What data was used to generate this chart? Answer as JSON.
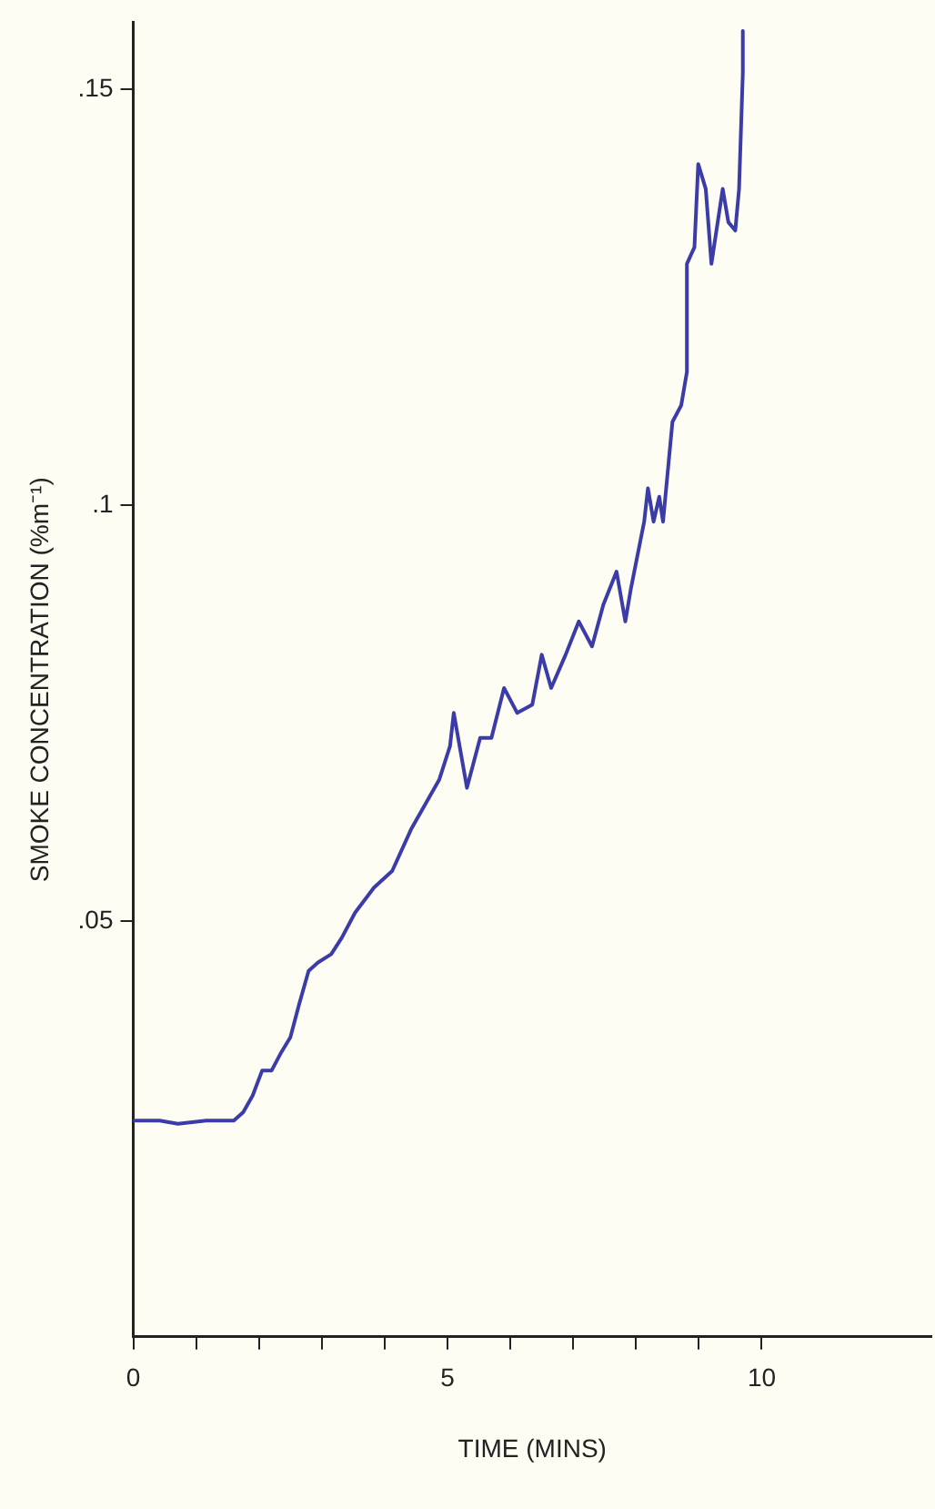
{
  "chart_data": {
    "type": "line",
    "xlabel": "TIME (MINS)",
    "ylabel": "SMOKE CONCENTRATION (%m⁻¹)",
    "grid": false,
    "legend": false,
    "marker": "none",
    "line_style": "solid",
    "xlim": [
      0,
      12.7
    ],
    "ylim": [
      0,
      0.158
    ],
    "xticks": [
      0,
      {
        "value": 1,
        "label": null
      },
      {
        "value": 2,
        "label": null
      },
      {
        "value": 3,
        "label": null
      },
      {
        "value": 4,
        "label": null
      },
      5,
      {
        "value": 6,
        "label": null
      },
      {
        "value": 7,
        "label": null
      },
      {
        "value": 8,
        "label": null
      },
      {
        "value": 9,
        "label": null
      },
      10
    ],
    "yticks": [
      {
        "value": 0.05,
        "label": ".05"
      },
      {
        "value": 0.1,
        "label": ".1"
      },
      {
        "value": 0.15,
        "label": ".15"
      }
    ],
    "series": [
      {
        "color": "#3c3ca8",
        "x": [
          0,
          0.42,
          0.71,
          1.16,
          1.6,
          1.75,
          1.9,
          2.05,
          2.2,
          2.34,
          2.5,
          2.64,
          2.79,
          2.94,
          3.15,
          3.32,
          3.53,
          3.83,
          4.12,
          4.42,
          4.72,
          4.87,
          5.04,
          5.1,
          5.31,
          5.52,
          5.7,
          5.9,
          6.11,
          6.35,
          6.5,
          6.65,
          6.88,
          7.09,
          7.3,
          7.48,
          7.69,
          7.83,
          7.92,
          8.13,
          8.19,
          8.28,
          8.37,
          8.43,
          8.58,
          8.72,
          8.81,
          8.81,
          8.93,
          8.99,
          9.11,
          9.2,
          9.38,
          9.47,
          9.58,
          9.64,
          9.67,
          9.7,
          9.7
        ],
        "values": [
          0.026,
          0.026,
          0.0256,
          0.026,
          0.026,
          0.027,
          0.029,
          0.032,
          0.032,
          0.034,
          0.036,
          0.04,
          0.044,
          0.045,
          0.046,
          0.048,
          0.051,
          0.054,
          0.056,
          0.061,
          0.065,
          0.067,
          0.071,
          0.075,
          0.066,
          0.072,
          0.072,
          0.078,
          0.075,
          0.076,
          0.082,
          0.078,
          0.082,
          0.086,
          0.083,
          0.088,
          0.092,
          0.086,
          0.09,
          0.098,
          0.102,
          0.098,
          0.101,
          0.098,
          0.11,
          0.112,
          0.116,
          0.129,
          0.131,
          0.141,
          0.138,
          0.129,
          0.138,
          0.134,
          0.133,
          0.138,
          0.145,
          0.152,
          0.157
        ]
      }
    ]
  }
}
